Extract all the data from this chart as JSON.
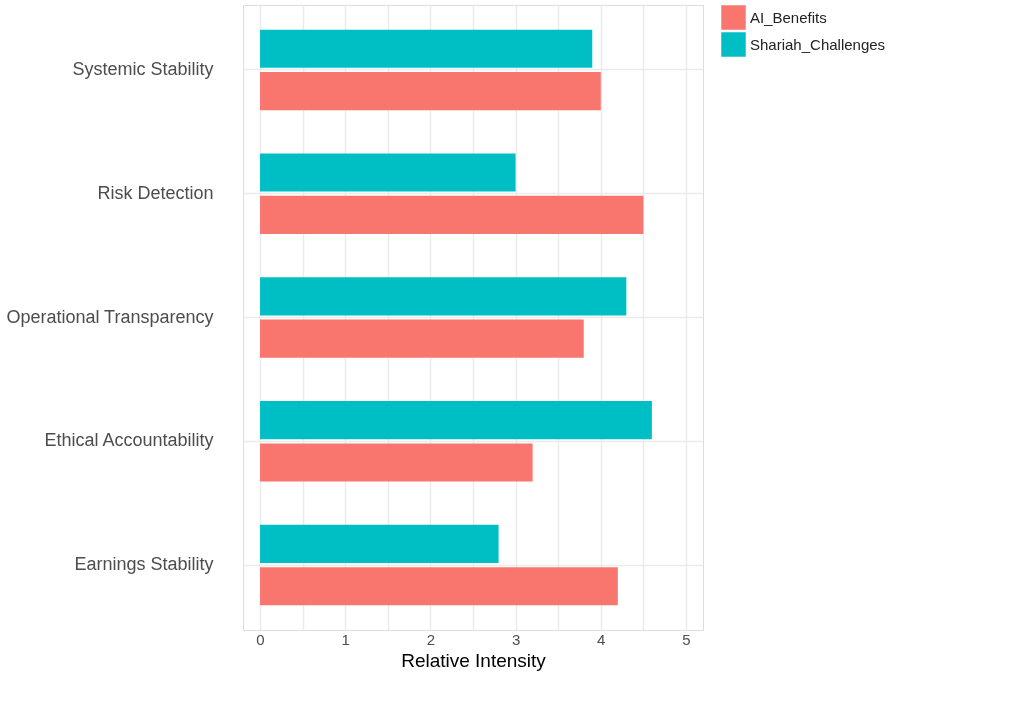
{
  "chart_data": {
    "type": "bar",
    "orientation": "horizontal",
    "xlabel": "Relative Intensity",
    "categories": [
      "Systemic Stability",
      "Risk Detection",
      "Operational Transparency",
      "Ethical Accountability",
      "Earnings Stability"
    ],
    "series": [
      {
        "name": "AI_Benefits",
        "color": "#f8766d",
        "values": [
          4.0,
          4.5,
          3.8,
          3.2,
          4.2
        ]
      },
      {
        "name": "Shariah_Challenges",
        "color": "#00bfc4",
        "values": [
          3.9,
          3.0,
          4.3,
          4.6,
          2.8
        ]
      }
    ],
    "xlim": [
      -0.2,
      5.2
    ],
    "xticks": [
      0,
      {
        "value": 0.5,
        "label": null
      },
      1,
      {
        "value": 1.5,
        "label": null
      },
      2,
      {
        "value": 2.5,
        "label": null
      },
      3,
      {
        "value": 3.5,
        "label": null
      },
      4,
      {
        "value": 4.5,
        "label": null
      },
      5
    ],
    "grid": true,
    "legend": "right"
  }
}
